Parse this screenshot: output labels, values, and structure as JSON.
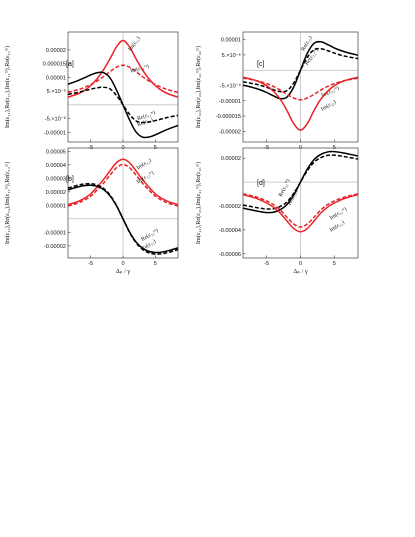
{
  "chart_data": [
    {
      "type": "line",
      "panel": "[a]",
      "ylabel": "Im(ε₁₁),Re(ε₁₁),Im(ε₁₁ᵐ),Re(ε₁₁ᵐ)",
      "xlabel": "",
      "xlim": [
        -8.5,
        8.5
      ],
      "ylim": [
        -1.35e-05,
        2.65e-05
      ],
      "xticks": [
        -5,
        0,
        5
      ],
      "xtick_labels": [
        "-5",
        "0",
        "5"
      ],
      "yticks": [
        -1e-05,
        -5e-06,
        5e-06,
        1e-05,
        1.5e-05,
        2e-05
      ],
      "ytick_labels": [
        "-0.00001",
        "-5.×10⁻⁶",
        "5.×10⁻⁶",
        "0.00001",
        "0.000015",
        "0.00002"
      ],
      "series": [
        {
          "label": "Im(ε₁₁)",
          "label_at": [
            1.2,
            1.95e-05
          ],
          "label_rot": -55,
          "color": "#e8232a",
          "dash": false,
          "x": [
            -8.5,
            -7,
            -6,
            -5,
            -4,
            -3,
            -2,
            -1,
            0,
            1,
            2,
            3,
            4,
            5,
            6,
            7,
            8.5
          ],
          "y": [
            2.8e-06,
            4e-06,
            5.2e-06,
            7e-06,
            9.5e-06,
            1.28e-05,
            1.68e-05,
            2.11e-05,
            2.34e-05,
            2.11e-05,
            1.68e-05,
            1.28e-05,
            9.5e-06,
            7e-06,
            5.2e-06,
            4e-06,
            2.8e-06
          ]
        },
        {
          "label": "Im(ε₁₁ᵐ)",
          "label_at": [
            1.2,
            1.18e-05
          ],
          "label_rot": -15,
          "color": "#e8232a",
          "dash": true,
          "x": [
            -8.5,
            -7,
            -6,
            -5,
            -4,
            -3,
            -2,
            -1,
            0,
            1,
            2,
            3,
            4,
            5,
            6,
            7,
            8.5
          ],
          "y": [
            4.5e-06,
            5.5e-06,
            6.3e-06,
            7.4e-06,
            8.7e-06,
            1.03e-05,
            1.21e-05,
            1.37e-05,
            1.44e-05,
            1.37e-05,
            1.21e-05,
            1.03e-05,
            8.7e-06,
            7.4e-06,
            6.3e-06,
            5.5e-06,
            4.5e-06
          ]
        },
        {
          "label": "Re(ε₁₁)",
          "label_at": [
            2.3,
            -7.8e-06
          ],
          "label_rot": -20,
          "color": "#000000",
          "dash": false,
          "x": [
            -8.5,
            -7,
            -6,
            -5,
            -4,
            -3,
            -2,
            -1,
            0,
            1,
            2,
            3,
            4,
            5,
            6,
            7,
            8.5
          ],
          "y": [
            7.5e-06,
            8.8e-06,
            9.8e-06,
            1.09e-05,
            1.17e-05,
            1.17e-05,
            9.8e-06,
            5.4e-06,
            0,
            -5.4e-06,
            -9.8e-06,
            -1.17e-05,
            -1.17e-05,
            -1.09e-05,
            -9.8e-06,
            -8.8e-06,
            -7.5e-06
          ]
        },
        {
          "label": "Re(ε₁₁ᵐ)",
          "label_at": [
            2.3,
            -5.6e-06
          ],
          "label_rot": -20,
          "color": "#000000",
          "dash": true,
          "x": [
            -8.5,
            -7,
            -6,
            -5,
            -4,
            -3,
            -2,
            -1,
            0,
            1,
            2,
            3,
            4,
            5,
            6,
            7,
            8.5
          ],
          "y": [
            3.8e-06,
            4.5e-06,
            5.1e-06,
            5.7e-06,
            6.2e-06,
            6.4e-06,
            5.8e-06,
            3.4e-06,
            0,
            -3.4e-06,
            -5.8e-06,
            -6.4e-06,
            -6.2e-06,
            -5.7e-06,
            -5.1e-06,
            -4.5e-06,
            -3.8e-06
          ]
        }
      ]
    },
    {
      "type": "line",
      "panel": "[c]",
      "ylabel": "Im(ε₂₂),Re(ε₂₂),Im(ε₂₂ᵐ),Re(ε₂₂ᵐ)",
      "xlabel": "",
      "xlim": [
        -8.5,
        8.5
      ],
      "ylim": [
        -2.35e-05,
        1.25e-05
      ],
      "xticks": [
        -5,
        0,
        5
      ],
      "xtick_labels": [
        "-5",
        "0",
        "5"
      ],
      "yticks": [
        -2e-05,
        -1.5e-05,
        -1e-05,
        -5e-06,
        5e-06,
        1e-05
      ],
      "ytick_labels": [
        "-0.00002",
        "-0.000015",
        "-0.00001",
        "-5.×10⁻⁶",
        "5.×10⁻⁶",
        "0.00001"
      ],
      "series": [
        {
          "label": "Re(ε₂₂)",
          "label_at": [
            0.5,
            6.2e-06
          ],
          "label_rot": -60,
          "color": "#000000",
          "dash": false,
          "x": [
            -8.5,
            -7,
            -6,
            -5,
            -4,
            -3,
            -2,
            -1,
            0,
            1,
            2,
            3,
            4,
            5,
            6,
            7,
            8.5
          ],
          "y": [
            -4.9e-06,
            -5.7e-06,
            -6.4e-06,
            -7.3e-06,
            -8.4e-06,
            -9.3e-06,
            -8.8e-06,
            -5.5e-06,
            0,
            5.5e-06,
            8.8e-06,
            9.3e-06,
            8.4e-06,
            7.3e-06,
            6.4e-06,
            5.7e-06,
            4.9e-06
          ]
        },
        {
          "label": "Re(ε₂₂ᵐ)",
          "label_at": [
            1.0,
            1.6e-06
          ],
          "label_rot": -55,
          "color": "#000000",
          "dash": true,
          "x": [
            -8.5,
            -7,
            -6,
            -5,
            -4,
            -3,
            -2,
            -1,
            0,
            1,
            2,
            3,
            4,
            5,
            6,
            7,
            8.5
          ],
          "y": [
            -3.8e-06,
            -4.4e-06,
            -4.9e-06,
            -5.6e-06,
            -6.4e-06,
            -7e-06,
            -6.7e-06,
            -4.2e-06,
            0,
            4.2e-06,
            6.7e-06,
            7e-06,
            6.4e-06,
            5.6e-06,
            4.9e-06,
            4.4e-06,
            3.8e-06
          ]
        },
        {
          "label": "Im(ε₂₂ᵐ)",
          "label_at": [
            3.2,
            -8.8e-06
          ],
          "label_rot": -25,
          "color": "#e8232a",
          "dash": true,
          "x": [
            -8.5,
            -7,
            -6,
            -5,
            -4,
            -3,
            -2,
            -1,
            0,
            1,
            2,
            3,
            4,
            5,
            6,
            7,
            8.5
          ],
          "y": [
            -2.6e-06,
            -3.2e-06,
            -3.7e-06,
            -4.4e-06,
            -5.3e-06,
            -6.5e-06,
            -7.9e-06,
            -9.1e-06,
            -9.7e-06,
            -9.1e-06,
            -7.9e-06,
            -6.5e-06,
            -5.3e-06,
            -4.4e-06,
            -3.7e-06,
            -3.2e-06,
            -2.6e-06
          ]
        },
        {
          "label": "Im(ε₂₂)",
          "label_at": [
            3.2,
            -1.33e-05
          ],
          "label_rot": -30,
          "color": "#e8232a",
          "dash": false,
          "x": [
            -8.5,
            -7,
            -6,
            -5,
            -4,
            -3,
            -2,
            -1,
            0,
            1,
            2,
            3,
            4,
            5,
            6,
            7,
            8.5
          ],
          "y": [
            -2.3e-06,
            -3.1e-06,
            -3.9e-06,
            -5.1e-06,
            -6.9e-06,
            -9.5e-06,
            -1.32e-05,
            -1.75e-05,
            -1.96e-05,
            -1.75e-05,
            -1.32e-05,
            -9.5e-06,
            -6.9e-06,
            -5.1e-06,
            -3.9e-06,
            -3.1e-06,
            -2.3e-06
          ]
        }
      ]
    },
    {
      "type": "line",
      "panel": "[b]",
      "ylabel": "Im(ε₁₂),Re(ε₁₂),Im(ε₁₂ᵐ),Re(ε₁₂ᵐ)",
      "xlabel": "Δₚ / γ",
      "xlim": [
        -8.5,
        8.5
      ],
      "ylim": [
        -2.9e-05,
        5.25e-05
      ],
      "xticks": [
        -5,
        0,
        5
      ],
      "xtick_labels": [
        "-5",
        "0",
        "5"
      ],
      "yticks": [
        -2e-05,
        -1e-05,
        1e-05,
        2e-05,
        3e-05,
        4e-05,
        5e-05
      ],
      "ytick_labels": [
        "-0.00002",
        "-0.00001",
        "0.00001",
        "0.00002",
        "0.00003",
        "0.00004",
        "0.00005"
      ],
      "series": [
        {
          "label": "Im(ε₁₂)",
          "label_at": [
            2.3,
            3.65e-05
          ],
          "label_rot": -32,
          "color": "#e8232a",
          "dash": false,
          "x": [
            -8.5,
            -7,
            -6,
            -5,
            -4,
            -3,
            -2,
            -1,
            0,
            1,
            2,
            3,
            4,
            5,
            6,
            7,
            8.5
          ],
          "y": [
            1.05e-05,
            1.28e-05,
            1.52e-05,
            1.85e-05,
            2.35e-05,
            2.92e-05,
            3.57e-05,
            4.16e-05,
            4.42e-05,
            4.16e-05,
            3.57e-05,
            2.92e-05,
            2.35e-05,
            1.85e-05,
            1.52e-05,
            1.28e-05,
            1.05e-05
          ]
        },
        {
          "label": "Im(ε₁₂ᵐ)",
          "label_at": [
            2.3,
            2.62e-05
          ],
          "label_rot": -32,
          "color": "#e8232a",
          "dash": true,
          "x": [
            -8.5,
            -7,
            -6,
            -5,
            -4,
            -3,
            -2,
            -1,
            0,
            1,
            2,
            3,
            4,
            5,
            6,
            7,
            8.5
          ],
          "y": [
            9.5e-06,
            1.16e-05,
            1.38e-05,
            1.68e-05,
            2.14e-05,
            2.65e-05,
            3.25e-05,
            3.79e-05,
            4.03e-05,
            3.79e-05,
            3.25e-05,
            2.65e-05,
            2.14e-05,
            1.68e-05,
            1.38e-05,
            1.16e-05,
            9.5e-06
          ]
        },
        {
          "label": "Re(ε₁₂ᵐ)",
          "label_at": [
            3.0,
            -1.65e-05
          ],
          "label_rot": -32,
          "color": "#000000",
          "dash": true,
          "x": [
            -8.5,
            -7,
            -6,
            -5,
            -4,
            -3,
            -2,
            -1,
            0,
            1,
            2,
            3,
            4,
            5,
            6,
            7,
            8.5
          ],
          "y": [
            2.28e-05,
            2.49e-05,
            2.58e-05,
            2.61e-05,
            2.51e-05,
            2.25e-05,
            1.76e-05,
            9.9e-06,
            0,
            -9.9e-06,
            -1.76e-05,
            -2.25e-05,
            -2.51e-05,
            -2.61e-05,
            -2.58e-05,
            -2.49e-05,
            -2.28e-05
          ]
        },
        {
          "label": "Re(ε₁₂)",
          "label_at": [
            3.0,
            -2.35e-05
          ],
          "label_rot": -32,
          "color": "#000000",
          "dash": false,
          "x": [
            -8.5,
            -7,
            -6,
            -5,
            -4,
            -3,
            -2,
            -1,
            0,
            1,
            2,
            3,
            4,
            5,
            6,
            7,
            8.5
          ],
          "y": [
            2.15e-05,
            2.36e-05,
            2.46e-05,
            2.49e-05,
            2.41e-05,
            2.17e-05,
            1.7e-05,
            9.6e-06,
            0,
            -9.6e-06,
            -1.7e-05,
            -2.17e-05,
            -2.41e-05,
            -2.49e-05,
            -2.46e-05,
            -2.36e-05,
            -2.15e-05
          ]
        }
      ]
    },
    {
      "type": "line",
      "panel": "[d]",
      "ylabel": "Im(ε₂₁),Re(ε₂₁),Im(ε₂₁ᵐ),Re(ε₂₁ᵐ)",
      "xlabel": "Δₚ / γ",
      "xlim": [
        -8.5,
        8.5
      ],
      "ylim": [
        -6.35e-05,
        2.85e-05
      ],
      "xticks": [
        -5,
        0,
        5
      ],
      "xtick_labels": [
        "-5",
        "0",
        "5"
      ],
      "yticks": [
        -6e-05,
        -4e-05,
        -2e-05,
        2e-05
      ],
      "ytick_labels": [
        "-0.00006",
        "-0.00004",
        "-0.00002",
        "0.00002"
      ],
      "series": [
        {
          "label": "Re(ε₂₁ᵐ)",
          "label_at": [
            -2.8,
            -1.25e-05
          ],
          "label_rot": -65,
          "color": "#000000",
          "dash": true,
          "x": [
            -8.5,
            -7,
            -6,
            -5,
            -4,
            -3,
            -2,
            -1,
            0,
            1,
            2,
            3,
            4,
            5,
            6,
            7,
            8.5
          ],
          "y": [
            -1.92e-05,
            -2.08e-05,
            -2.18e-05,
            -2.25e-05,
            -2.23e-05,
            -2.04e-05,
            -1.66e-05,
            -9.5e-06,
            0,
            9.5e-06,
            1.66e-05,
            2.04e-05,
            2.23e-05,
            2.25e-05,
            2.18e-05,
            2.08e-05,
            1.92e-05
          ]
        },
        {
          "label": "Re(ε₂₁)",
          "label_at": [
            -1.5,
            -1.95e-05
          ],
          "label_rot": -65,
          "color": "#000000",
          "dash": false,
          "x": [
            -8.5,
            -7,
            -6,
            -5,
            -4,
            -3,
            -2,
            -1,
            0,
            1,
            2,
            3,
            4,
            5,
            6,
            7,
            8.5
          ],
          "y": [
            -2.18e-05,
            -2.36e-05,
            -2.47e-05,
            -2.55e-05,
            -2.52e-05,
            -2.31e-05,
            -1.88e-05,
            -1.08e-05,
            0,
            1.08e-05,
            1.88e-05,
            2.31e-05,
            2.52e-05,
            2.55e-05,
            2.47e-05,
            2.36e-05,
            2.18e-05
          ]
        },
        {
          "label": "Im(ε₂₁ᵐ)",
          "label_at": [
            4.5,
            -3.15e-05
          ],
          "label_rot": -32,
          "color": "#e8232a",
          "dash": true,
          "x": [
            -8.5,
            -7,
            -6,
            -5,
            -4,
            -3,
            -2,
            -1,
            0,
            1,
            2,
            3,
            4,
            5,
            6,
            7,
            8.5
          ],
          "y": [
            -9.8e-06,
            -1.18e-05,
            -1.35e-05,
            -1.58e-05,
            -1.89e-05,
            -2.33e-05,
            -2.94e-05,
            -3.51e-05,
            -3.76e-05,
            -3.51e-05,
            -2.94e-05,
            -2.33e-05,
            -1.89e-05,
            -1.58e-05,
            -1.35e-05,
            -1.18e-05,
            -9.8e-06
          ]
        },
        {
          "label": "Im(ε₂₁)",
          "label_at": [
            4.5,
            -4.15e-05
          ],
          "label_rot": -32,
          "color": "#e8232a",
          "dash": false,
          "x": [
            -8.5,
            -7,
            -6,
            -5,
            -4,
            -3,
            -2,
            -1,
            0,
            1,
            2,
            3,
            4,
            5,
            6,
            7,
            8.5
          ],
          "y": [
            -1.05e-05,
            -1.28e-05,
            -1.48e-05,
            -1.75e-05,
            -2.1e-05,
            -2.59e-05,
            -3.26e-05,
            -3.89e-05,
            -4.16e-05,
            -3.89e-05,
            -3.26e-05,
            -2.59e-05,
            -2.1e-05,
            -1.75e-05,
            -1.48e-05,
            -1.28e-05,
            -1.05e-05
          ]
        }
      ]
    }
  ]
}
